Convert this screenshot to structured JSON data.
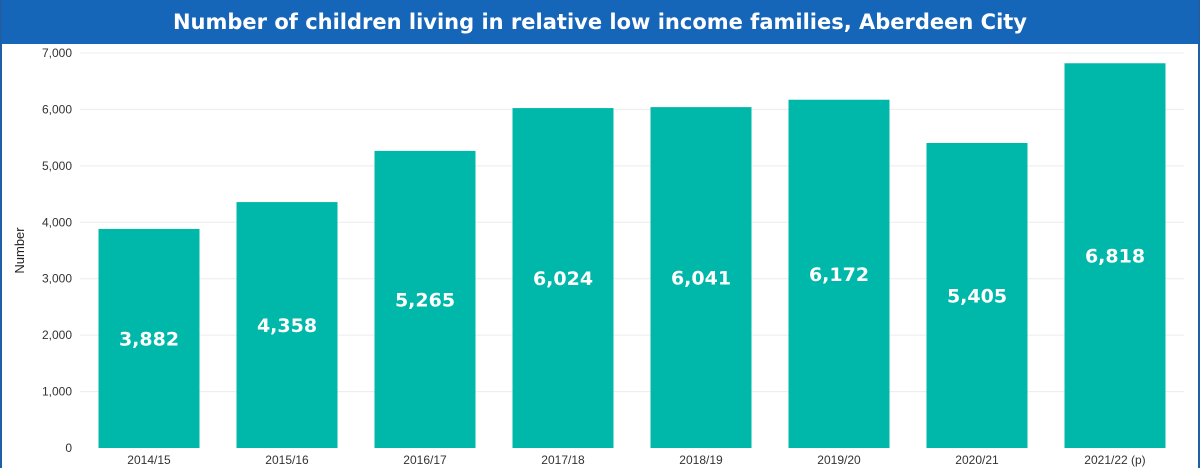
{
  "chart_data": {
    "type": "bar",
    "title": "Number of children living in relative low income families, Aberdeen City",
    "ylabel": "Number",
    "xlabel": "",
    "categories": [
      "2014/15",
      "2015/16",
      "2016/17",
      "2017/18",
      "2018/19",
      "2019/20",
      "2020/21",
      "2021/22 (p)"
    ],
    "values": [
      3882,
      4358,
      5265,
      6024,
      6041,
      6172,
      5405,
      6818
    ],
    "data_labels": [
      "3,882",
      "4,358",
      "5,265",
      "6,024",
      "6,041",
      "6,172",
      "5,405",
      "6,818"
    ],
    "ylim": [
      0,
      7000
    ],
    "yticks": [
      0,
      1000,
      2000,
      3000,
      4000,
      5000,
      6000,
      7000
    ],
    "ytick_labels": [
      "0",
      "1,000",
      "2,000",
      "3,000",
      "4,000",
      "5,000",
      "6,000",
      "7,000"
    ],
    "grid": true,
    "colors": {
      "bar": "#00b8aa",
      "title_bg": "#1565b8",
      "title_text": "#ffffff"
    }
  }
}
